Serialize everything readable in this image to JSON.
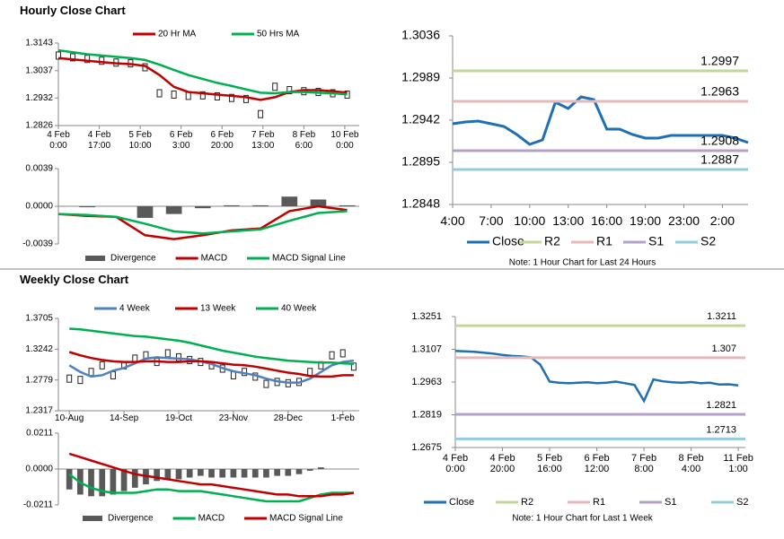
{
  "sections": [
    "Hourly Close Chart",
    "Weekly Close Chart"
  ],
  "chart_data": [
    {
      "type": "line",
      "legend": "top",
      "x": [
        0,
        6,
        12,
        18,
        24,
        30,
        36,
        42,
        48,
        54,
        60,
        66,
        72,
        78,
        84,
        90,
        96,
        102,
        108,
        114,
        120
      ],
      "close": [
        1.3095,
        1.3088,
        1.3082,
        1.3075,
        1.3068,
        1.3065,
        1.305,
        1.295,
        1.2945,
        1.294,
        1.2942,
        1.2938,
        1.2932,
        1.2928,
        1.287,
        1.2975,
        1.2962,
        1.2958,
        1.2955,
        1.295,
        1.2945
      ],
      "series": [
        {
          "name": "20 Hr MA",
          "color": "#c00000",
          "values": [
            1.3085,
            1.308,
            1.3075,
            1.307,
            1.3065,
            1.3062,
            1.3055,
            1.302,
            1.2975,
            1.2955,
            1.295,
            1.2945,
            1.294,
            1.2935,
            1.2925,
            1.2935,
            1.2955,
            1.2962,
            1.2962,
            1.2958,
            1.2952
          ]
        },
        {
          "name": "50 Hrs MA",
          "color": "#00b050",
          "values": [
            1.3115,
            1.3108,
            1.31,
            1.3095,
            1.309,
            1.3085,
            1.3078,
            1.306,
            1.304,
            1.302,
            1.3005,
            1.299,
            1.2978,
            1.2965,
            1.2952,
            1.295,
            1.2955,
            1.2955,
            1.2952,
            1.295,
            1.2946
          ]
        }
      ],
      "xlim": [
        0,
        125
      ],
      "ylim": [
        1.2826,
        1.3143
      ],
      "yticks": [
        1.2826,
        1.2932,
        1.3037,
        1.3143
      ],
      "xticks": [
        {
          "value": 0,
          "label": "4 Feb\n0:00"
        },
        {
          "value": 17,
          "label": "4 Feb\n17:00"
        },
        {
          "value": 34,
          "label": "5 Feb\n10:00"
        },
        {
          "value": 51,
          "label": "6 Feb\n3:00"
        },
        {
          "value": 68,
          "label": "6 Feb\n20:00"
        },
        {
          "value": 85,
          "label": "7 Feb\n13:00"
        },
        {
          "value": 102,
          "label": "8 Feb\n6:00"
        },
        {
          "value": 119,
          "label": "10 Feb\n0:00"
        }
      ]
    },
    {
      "type": "combo",
      "legend": "bottom",
      "x": [
        0,
        12,
        24,
        36,
        48,
        60,
        72,
        84,
        96,
        108,
        120
      ],
      "series": [
        {
          "name": "Divergence",
          "color": "#595959",
          "style": "bar",
          "values": [
            0,
            -0.0001,
            0,
            -0.0012,
            -0.0008,
            -0.0002,
            0.0001,
            0.0001,
            0.001,
            0.0007,
            0.0001
          ]
        },
        {
          "name": "MACD",
          "color": "#c00000",
          "values": [
            -0.0008,
            -0.001,
            -0.0011,
            -0.003,
            -0.0034,
            -0.003,
            -0.0025,
            -0.0023,
            -0.0005,
            0.0,
            -0.0004
          ]
        },
        {
          "name": "MACD Signal Line",
          "color": "#00b050",
          "values": [
            -0.0008,
            -0.0009,
            -0.0011,
            -0.0018,
            -0.0026,
            -0.0028,
            -0.0026,
            -0.0024,
            -0.0015,
            -0.0007,
            -0.0005
          ]
        }
      ],
      "xlim": [
        0,
        125
      ],
      "ylim": [
        -0.0039,
        0.0039
      ],
      "yticks": [
        -0.0039,
        {
          "value": 0,
          "label": "0.0000"
        },
        0.0039
      ]
    },
    {
      "type": "line",
      "legend": "bottom",
      "note": "Note: 1 Hour Chart for Last 24 Hours",
      "x": [
        0,
        1,
        2,
        3,
        4,
        5,
        6,
        7,
        8,
        9,
        10,
        11,
        12,
        13,
        14,
        15,
        16,
        17,
        18,
        19,
        20,
        21,
        22,
        23
      ],
      "series": [
        {
          "name": "Close",
          "color": "#1f6fb4",
          "values": [
            1.2938,
            1.294,
            1.2941,
            1.2938,
            1.2935,
            1.2926,
            1.2915,
            1.292,
            1.2962,
            1.2955,
            1.2968,
            1.2965,
            1.2932,
            1.2932,
            1.2926,
            1.2922,
            1.2922,
            1.2925,
            1.2925,
            1.2925,
            1.2925,
            1.2925,
            1.2922,
            1.2917
          ]
        },
        {
          "name": "R2",
          "color": "#c3d69b",
          "level": 1.2997
        },
        {
          "name": "R1",
          "color": "#e6b9b8",
          "level": 1.2963
        },
        {
          "name": "S1",
          "color": "#b3a2c7",
          "level": 1.2908
        },
        {
          "name": "S2",
          "color": "#93cddd",
          "level": 1.2887
        }
      ],
      "xlim": [
        0,
        23
      ],
      "ylim": [
        1.2848,
        1.3036
      ],
      "yticks": [
        1.2848,
        1.2895,
        1.2942,
        1.2989,
        1.3036
      ],
      "xticks": [
        {
          "value": 0,
          "label": "4:00"
        },
        {
          "value": 3,
          "label": "7:00"
        },
        {
          "value": 6,
          "label": "10:00"
        },
        {
          "value": 9,
          "label": "13:00"
        },
        {
          "value": 12,
          "label": "16:00"
        },
        {
          "value": 15,
          "label": "19:00"
        },
        {
          "value": 18,
          "label": "23:00"
        },
        {
          "value": 21,
          "label": "2:00"
        }
      ]
    },
    {
      "type": "line",
      "legend": "top",
      "x": [
        0,
        1,
        2,
        3,
        4,
        5,
        6,
        7,
        8,
        9,
        10,
        11,
        12,
        13,
        14,
        15,
        16,
        17,
        18,
        19,
        20,
        21,
        22,
        23,
        24,
        25,
        26
      ],
      "close": [
        1.28,
        1.278,
        1.29,
        1.3,
        1.285,
        1.3,
        1.31,
        1.315,
        1.305,
        1.318,
        1.312,
        1.308,
        1.305,
        1.3,
        1.295,
        1.285,
        1.29,
        1.283,
        1.272,
        1.275,
        1.273,
        1.275,
        1.29,
        1.3,
        1.315,
        1.318,
        1.298
      ],
      "series": [
        {
          "name": "4 Week",
          "color": "#4f81bd",
          "values": [
            1.3,
            1.29,
            1.283,
            1.285,
            1.292,
            1.296,
            1.303,
            1.31,
            1.312,
            1.311,
            1.31,
            1.309,
            1.306,
            1.302,
            1.296,
            1.291,
            1.288,
            1.285,
            1.28,
            1.276,
            1.274,
            1.274,
            1.28,
            1.29,
            1.3,
            1.305,
            1.307
          ]
        },
        {
          "name": "13 Week",
          "color": "#c00000",
          "values": [
            1.32,
            1.315,
            1.311,
            1.308,
            1.306,
            1.305,
            1.305,
            1.306,
            1.306,
            1.305,
            1.305,
            1.306,
            1.306,
            1.305,
            1.303,
            1.301,
            1.3,
            1.298,
            1.295,
            1.292,
            1.289,
            1.287,
            1.284,
            1.283,
            1.283,
            1.285,
            1.285
          ]
        },
        {
          "name": "40 Week",
          "color": "#00b050",
          "values": [
            1.355,
            1.354,
            1.352,
            1.35,
            1.348,
            1.346,
            1.344,
            1.343,
            1.341,
            1.339,
            1.337,
            1.334,
            1.33,
            1.326,
            1.322,
            1.319,
            1.316,
            1.313,
            1.311,
            1.309,
            1.307,
            1.306,
            1.305,
            1.304,
            1.304,
            1.303,
            1.302
          ]
        }
      ],
      "xlim": [
        -1,
        26.5
      ],
      "ylim": [
        1.2317,
        1.3705
      ],
      "yticks": [
        1.2317,
        1.2779,
        1.3242,
        1.3705
      ],
      "xticks": [
        {
          "value": 0,
          "label": "10-Aug"
        },
        {
          "value": 5,
          "label": "14-Sep"
        },
        {
          "value": 10,
          "label": "19-Oct"
        },
        {
          "value": 15,
          "label": "23-Nov"
        },
        {
          "value": 20,
          "label": "28-Dec"
        },
        {
          "value": 25,
          "label": "1-Feb"
        }
      ]
    },
    {
      "type": "combo",
      "legend": "bottom",
      "x": [
        0,
        1,
        2,
        3,
        4,
        5,
        6,
        7,
        8,
        9,
        10,
        11,
        12,
        13,
        14,
        15,
        16,
        17,
        18,
        19,
        20,
        21,
        22,
        23,
        24,
        25,
        26
      ],
      "series": [
        {
          "name": "Divergence",
          "color": "#595959",
          "style": "bar",
          "values": [
            -0.012,
            -0.015,
            -0.016,
            -0.016,
            -0.015,
            -0.013,
            -0.011,
            -0.009,
            -0.007,
            -0.006,
            -0.006,
            -0.005,
            -0.004,
            -0.005,
            -0.005,
            -0.005,
            -0.005,
            -0.005,
            -0.005,
            -0.004,
            -0.004,
            -0.003,
            -0.001,
            0.001,
            0,
            0,
            0
          ]
        },
        {
          "name": "MACD",
          "color": "#00b050",
          "values": [
            -0.003,
            -0.008,
            -0.011,
            -0.013,
            -0.014,
            -0.014,
            -0.014,
            -0.013,
            -0.012,
            -0.012,
            -0.013,
            -0.013,
            -0.013,
            -0.014,
            -0.015,
            -0.016,
            -0.017,
            -0.018,
            -0.019,
            -0.019,
            -0.019,
            -0.019,
            -0.017,
            -0.015,
            -0.014,
            -0.014,
            -0.014
          ]
        },
        {
          "name": "MACD Signal Line",
          "color": "#c00000",
          "values": [
            0.009,
            0.007,
            0.005,
            0.003,
            0.001,
            -0.001,
            -0.003,
            -0.004,
            -0.005,
            -0.006,
            -0.007,
            -0.008,
            -0.009,
            -0.009,
            -0.01,
            -0.011,
            -0.012,
            -0.013,
            -0.014,
            -0.015,
            -0.015,
            -0.016,
            -0.016,
            -0.016,
            -0.015,
            -0.015,
            -0.014
          ]
        }
      ],
      "xlim": [
        -1,
        26.5
      ],
      "ylim": [
        -0.0211,
        0.0211
      ],
      "yticks": [
        -0.0211,
        {
          "value": 0,
          "label": "0.0000"
        },
        0.0211
      ]
    },
    {
      "type": "line",
      "legend": "bottom",
      "note": "Note: 1 Hour Chart for Last 1 Week",
      "x": [
        0,
        4,
        8,
        12,
        16,
        20,
        24,
        28,
        32,
        36,
        40,
        44,
        48,
        52,
        56,
        60,
        64,
        68,
        72,
        76,
        80,
        84,
        88,
        92,
        96,
        100,
        104,
        108,
        112,
        116,
        120
      ],
      "series": [
        {
          "name": "Close",
          "color": "#1f6fb4",
          "values": [
            1.31,
            1.3098,
            1.3096,
            1.3092,
            1.3088,
            1.3082,
            1.3078,
            1.3076,
            1.3072,
            1.304,
            1.2965,
            1.296,
            1.2958,
            1.296,
            1.2962,
            1.2958,
            1.296,
            1.2965,
            1.2958,
            1.295,
            1.288,
            1.2975,
            1.2966,
            1.2962,
            1.296,
            1.2963,
            1.2958,
            1.296,
            1.2952,
            1.2953,
            1.2948
          ]
        },
        {
          "name": "R2",
          "color": "#c3d69b",
          "level": 1.3211
        },
        {
          "name": "R1",
          "color": "#e6b9b8",
          "level": 1.307
        },
        {
          "name": "S1",
          "color": "#b3a2c7",
          "level": 1.2821
        },
        {
          "name": "S2",
          "color": "#93cddd",
          "level": 1.2713
        }
      ],
      "xlim": [
        0,
        123
      ],
      "ylim": [
        1.2675,
        1.3251
      ],
      "yticks": [
        1.2675,
        1.2819,
        1.2963,
        1.3107,
        1.3251
      ],
      "xticks": [
        {
          "value": 0,
          "label": "4 Feb\n0:00"
        },
        {
          "value": 20,
          "label": "4 Feb\n20:00"
        },
        {
          "value": 40,
          "label": "5 Feb\n16:00"
        },
        {
          "value": 60,
          "label": "6 Feb\n12:00"
        },
        {
          "value": 80,
          "label": "7 Feb\n8:00"
        },
        {
          "value": 100,
          "label": "8 Feb\n4:00"
        },
        {
          "value": 120,
          "label": "11 Feb\n1:00"
        }
      ]
    }
  ]
}
